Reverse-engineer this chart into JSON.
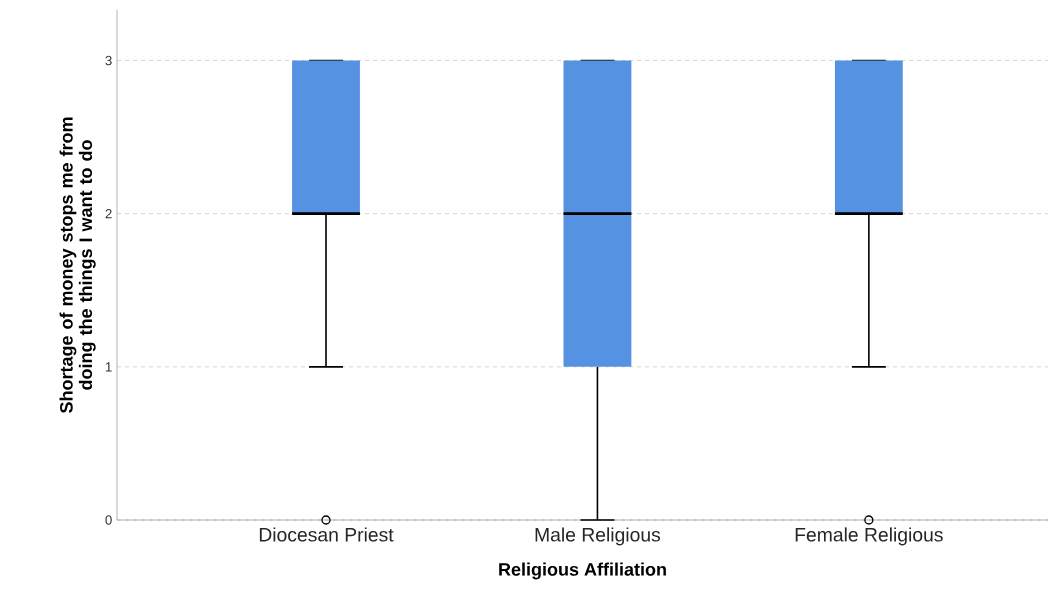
{
  "chart_data": {
    "type": "box",
    "xlabel": "Religious Affiliation",
    "ylabel": "Shortage of money stops me from doing the things I want to do",
    "categories": [
      "Diocesan Priest",
      "Male Religious",
      "Female Religious"
    ],
    "series": [
      {
        "color": "#5592e2",
        "boxes": [
          {
            "low": 1,
            "q1": 2,
            "median": 2,
            "q3": 3,
            "high": 3,
            "outliers": [
              0
            ]
          },
          {
            "low": 0,
            "q1": 1,
            "median": 2,
            "q3": 3,
            "high": 3
          },
          {
            "low": 1,
            "q1": 2,
            "median": 2,
            "q3": 3,
            "high": 3,
            "outliers": [
              0
            ]
          }
        ]
      }
    ],
    "ylim": [
      0,
      3.33
    ],
    "yticks": [
      0,
      1,
      2,
      3
    ],
    "grid": "y"
  }
}
